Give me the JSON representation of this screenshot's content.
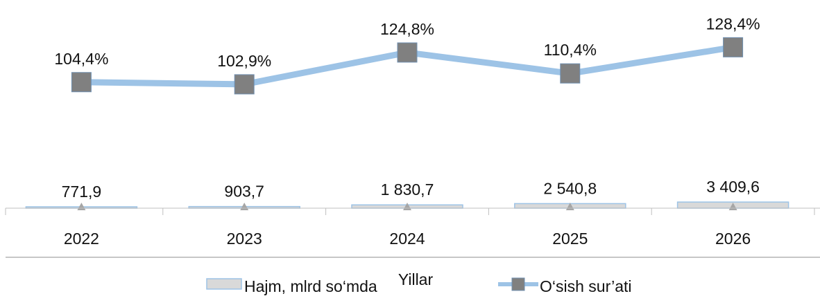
{
  "chart_data": {
    "type": "bar+line",
    "categories": [
      "2022",
      "2023",
      "2024",
      "2025",
      "2026"
    ],
    "xlabel": "Yillar",
    "series": [
      {
        "name": "Hajm, mlrd so‘mda",
        "type": "bar",
        "values": [
          771.9,
          903.7,
          1830.7,
          2540.8,
          3409.6
        ],
        "labels": [
          "771,9",
          "903,7",
          "1 830,7",
          "2 540,8",
          "3 409,6"
        ],
        "color": "#d9d9d9",
        "border": "#9dc3e6"
      },
      {
        "name": "O‘sish sur’ati",
        "type": "line",
        "values": [
          104.4,
          102.9,
          124.8,
          110.4,
          128.4
        ],
        "labels": [
          "104,4%",
          "102,9%",
          "124,8%",
          "110,4%",
          "128,4%"
        ],
        "line_color": "#9dc3e6",
        "marker_color": "#808080",
        "marker": "square"
      }
    ],
    "legend_position": "bottom",
    "grid": false
  }
}
